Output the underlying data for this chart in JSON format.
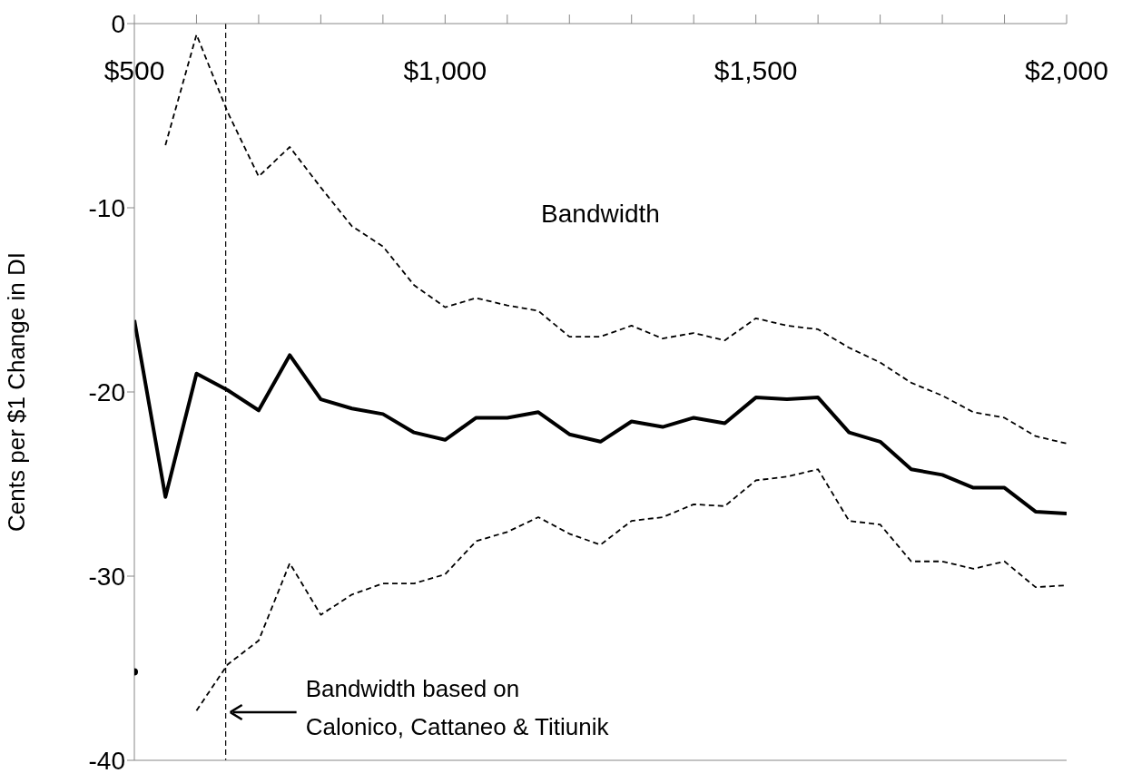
{
  "chart_data": {
    "type": "line",
    "xlabel": "Bandwidth",
    "ylabel": "Cents per $1 Change in DI",
    "x": [
      500,
      550,
      600,
      650,
      700,
      750,
      800,
      850,
      900,
      950,
      1000,
      1050,
      1100,
      1150,
      1200,
      1250,
      1300,
      1350,
      1400,
      1450,
      1500,
      1550,
      1600,
      1650,
      1700,
      1750,
      1800,
      1850,
      1900,
      1950,
      2000
    ],
    "series": [
      {
        "color": "#000000",
        "line_style": "solid",
        "values": [
          -16.1,
          -25.7,
          -19.0,
          -19.9,
          -21.0,
          -18.0,
          -20.4,
          -20.9,
          -21.2,
          -22.2,
          -22.6,
          -21.4,
          -21.4,
          -21.1,
          -22.3,
          -22.7,
          -21.6,
          -21.9,
          -21.4,
          -21.7,
          -20.3,
          -20.4,
          -20.3,
          -22.2,
          -22.7,
          -24.2,
          -24.5,
          -25.2,
          -25.2,
          -26.5,
          -26.6
        ]
      },
      {
        "color": "#000000",
        "line_style": "dashed",
        "values": [
          null,
          -6.6,
          -0.6,
          -4.8,
          -8.3,
          -6.7,
          -8.9,
          -11.0,
          -12.1,
          -14.2,
          -15.4,
          -14.9,
          -15.3,
          -15.6,
          -17.0,
          -17.0,
          -16.4,
          -17.1,
          -16.8,
          -17.2,
          -16.0,
          -16.4,
          -16.6,
          -17.6,
          -18.4,
          -19.5,
          -20.2,
          -21.1,
          -21.4,
          -22.4,
          -22.8
        ]
      },
      {
        "color": "#000000",
        "line_style": "dashed",
        "values": [
          -35.2,
          null,
          -37.3,
          -34.8,
          -33.5,
          -29.3,
          -32.1,
          -31.0,
          -30.4,
          -30.4,
          -29.9,
          -28.1,
          -27.6,
          -26.8,
          -27.7,
          -28.3,
          -27.0,
          -26.8,
          -26.1,
          -26.2,
          -24.8,
          -24.6,
          -24.2,
          -27.0,
          -27.2,
          -29.2,
          -29.2,
          -29.6,
          -29.2,
          -30.6,
          -30.5
        ]
      }
    ],
    "xlim": [
      500,
      2000
    ],
    "xticks": [
      {
        "value": 500,
        "label": "$500"
      },
      {
        "value": 600,
        "label": null
      },
      {
        "value": 700,
        "label": null
      },
      {
        "value": 800,
        "label": null
      },
      {
        "value": 900,
        "label": null
      },
      {
        "value": 1000,
        "label": "$1,000"
      },
      {
        "value": 1100,
        "label": null
      },
      {
        "value": 1200,
        "label": null
      },
      {
        "value": 1300,
        "label": null
      },
      {
        "value": 1400,
        "label": null
      },
      {
        "value": 1500,
        "label": "$1,500"
      },
      {
        "value": 1600,
        "label": null
      },
      {
        "value": 1700,
        "label": null
      },
      {
        "value": 1800,
        "label": null
      },
      {
        "value": 1900,
        "label": null
      },
      {
        "value": 2000,
        "label": "$2,000"
      }
    ],
    "ylim": [
      -40,
      0
    ],
    "yticks": [
      0,
      -10,
      -20,
      -30,
      -40
    ],
    "ref_lines": [
      {
        "axis": "x",
        "value": 647,
        "label": "Bandwidth based on\nCalonico, Cattaneo & Titiunik",
        "color": "#000000",
        "line_style": "dashed"
      }
    ],
    "marker": "none"
  }
}
